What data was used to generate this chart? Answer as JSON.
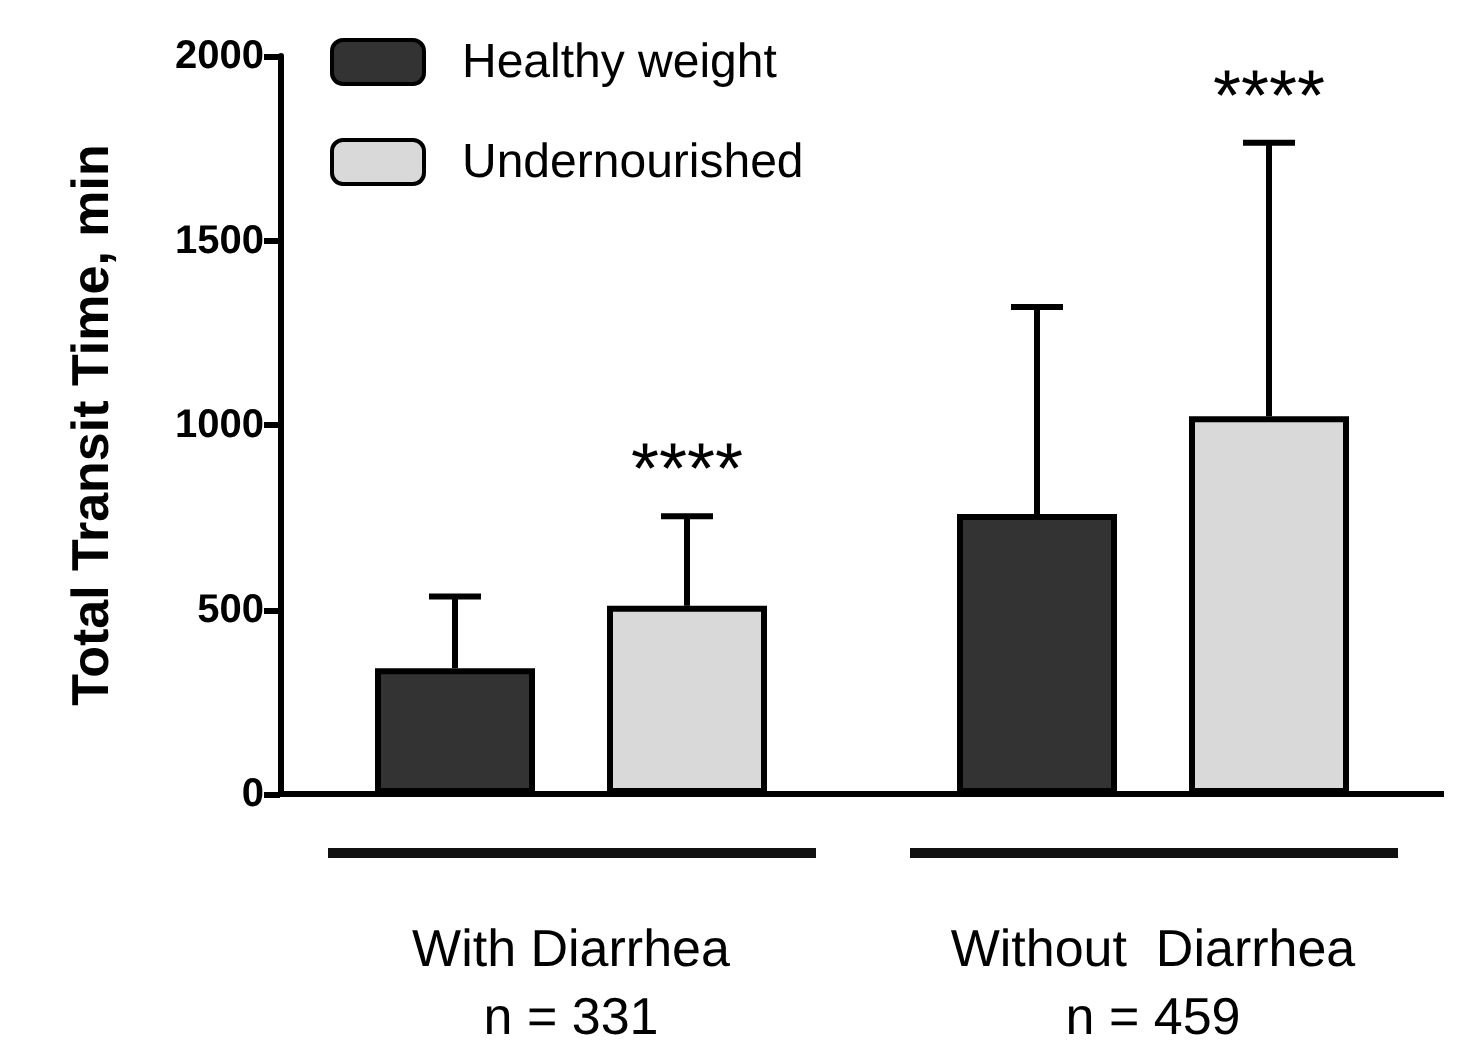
{
  "chart_data": {
    "type": "bar",
    "ylabel": "Total Transit Time, min",
    "categories": [
      "With Diarrhea\nn = 331",
      "Without  Diarrhea\nn = 459"
    ],
    "series": [
      {
        "name": "Healthy weight",
        "color": "#333333",
        "values": [
          341,
          759
        ],
        "errors": [
          [
            341,
            535
          ],
          [
            759,
            1320
          ]
        ]
      },
      {
        "name": "Undernourished",
        "color": "#d9d9d9",
        "values": [
          510,
          1024
        ],
        "errors": [
          [
            510,
            753
          ],
          [
            1024,
            1765
          ]
        ]
      }
    ],
    "ylim": [
      0,
      2000
    ],
    "yticks": [
      0,
      500,
      1000,
      1500,
      2000
    ],
    "grid": false,
    "legend": "top left",
    "annotations": [
      "****",
      "****"
    ]
  }
}
